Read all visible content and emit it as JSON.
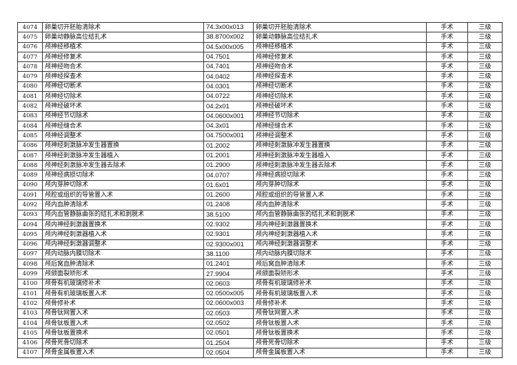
{
  "table": {
    "rows": [
      [
        "4074",
        "卵巢切开胚胎清除术",
        "74.3x00x013",
        "卵巢切开胚胎清除术",
        "手术",
        "三级"
      ],
      [
        "4075",
        "卵巢动静脉高位结扎术",
        "38.8700x002",
        "卵巢动静脉高位结扎术",
        "手术",
        "三级"
      ],
      [
        "4076",
        "颅神经移植术",
        "04.5x00x005",
        "颅神经移植术",
        "手术",
        "三级"
      ],
      [
        "4077",
        "颅神经修复术",
        "04.7501",
        "颅神经修复术",
        "手术",
        "三级"
      ],
      [
        "4078",
        "颅神经吻合术",
        "04.7401",
        "颅神经吻合术",
        "手术",
        "三级"
      ],
      [
        "4079",
        "颅神经探查术",
        "04.0402",
        "颅神经探查术",
        "手术",
        "三级"
      ],
      [
        "4080",
        "颅神经切断术",
        "04.0301",
        "颅神经切断术",
        "手术",
        "三级"
      ],
      [
        "4081",
        "颅神经切除术",
        "04.0722",
        "颅神经切除术",
        "手术",
        "三级"
      ],
      [
        "4082",
        "颅神经破坏术",
        "04.2x01",
        "颅神经破坏术",
        "手术",
        "三级"
      ],
      [
        "4083",
        "颅神经节切除术",
        "04.0600x001",
        "颅神经节切除术",
        "手术",
        "三级"
      ],
      [
        "4084",
        "颅神经缝合术",
        "04.3x01",
        "颅神经缝合术",
        "手术",
        "三级"
      ],
      [
        "4085",
        "颅神经调整术",
        "04.7500x001",
        "颅神经调整术",
        "手术",
        "三级"
      ],
      [
        "4086",
        "颅神经刺激脉冲发生器置换",
        "01.2002",
        "颅神经刺激脉冲发生器置换",
        "手术",
        "三级"
      ],
      [
        "4087",
        "颅神经刺激脉冲发生器植入",
        "01.2001",
        "颅神经刺激脉冲发生器植入",
        "手术",
        "三级"
      ],
      [
        "4088",
        "颅神经刺激脉冲发生器去除术",
        "01.2900",
        "颅神经刺激脉冲发生器去除术",
        "手术",
        "三级"
      ],
      [
        "4089",
        "颅神经病损切除术",
        "04.0707",
        "颅神经病损切除术",
        "手术",
        "三级"
      ],
      [
        "4090",
        "颅内芽肿切除术",
        "01.6x01",
        "颅内芽肿切除术",
        "手术",
        "三级"
      ],
      [
        "4091",
        "颅腔或组织的导管置入术",
        "01.2600",
        "颅腔或组织的导管置入术",
        "手术",
        "三级"
      ],
      [
        "4092",
        "颅内血肿清除术",
        "01.2408",
        "颅内血肿清除术",
        "手术",
        "三级"
      ],
      [
        "4093",
        "颅内血管静脉曲张的结扎术和剥脱术",
        "38.5100",
        "颅内血管静脉曲张的结扎术和剥脱术",
        "手术",
        "三级"
      ],
      [
        "4094",
        "颅内神经刺激器置换术",
        "02.9302",
        "颅内神经刺激器置换术",
        "手术",
        "三级"
      ],
      [
        "4095",
        "颅内神经刺激器植入术",
        "02.9301",
        "颅内神经刺激器植入术",
        "手术",
        "三级"
      ],
      [
        "4096",
        "颅内神经刺激器调整术",
        "02.9300x001",
        "颅内神经刺激器调整术",
        "手术",
        "三级"
      ],
      [
        "4097",
        "颅内动脉内膜切除术",
        "38.1100",
        "颅内动脉内膜切除术",
        "手术",
        "三级"
      ],
      [
        "4098",
        "颅后窝血肿清除术",
        "01.2401",
        "颅后窝血肿清除术",
        "手术",
        "三级"
      ],
      [
        "4099",
        "颅颌面裂矫形术",
        "27.9904",
        "颅颌面裂矫形术",
        "手术",
        "三级"
      ],
      [
        "4100",
        "颅骨有机玻璃修补术",
        "02.0603",
        "颅骨有机玻璃修补术",
        "手术",
        "三级"
      ],
      [
        "4101",
        "颅骨有机玻璃板置入术",
        "02.0500x005",
        "颅骨有机玻璃板置入术",
        "手术",
        "三级"
      ],
      [
        "4102",
        "颅骨修补术",
        "02.0600x003",
        "颅骨修补术",
        "手术",
        "三级"
      ],
      [
        "4103",
        "颅骨钛网置入术",
        "02.0503",
        "颅骨钛网置入术",
        "手术",
        "三级"
      ],
      [
        "4104",
        "颅骨钛板置入术",
        "02.0502",
        "颅骨钛板置入术",
        "手术",
        "三级"
      ],
      [
        "4105",
        "颅骨钛板置换术",
        "02.0501",
        "颅骨钛板置换术",
        "手术",
        "三级"
      ],
      [
        "4106",
        "颅骨死骨切除术",
        "01.2504",
        "颅骨死骨切除术",
        "手术",
        "三级"
      ],
      [
        "4107",
        "颅骨金属板置入术",
        "02.0504",
        "颅骨金属板置入术",
        "手术",
        "三级"
      ]
    ]
  }
}
